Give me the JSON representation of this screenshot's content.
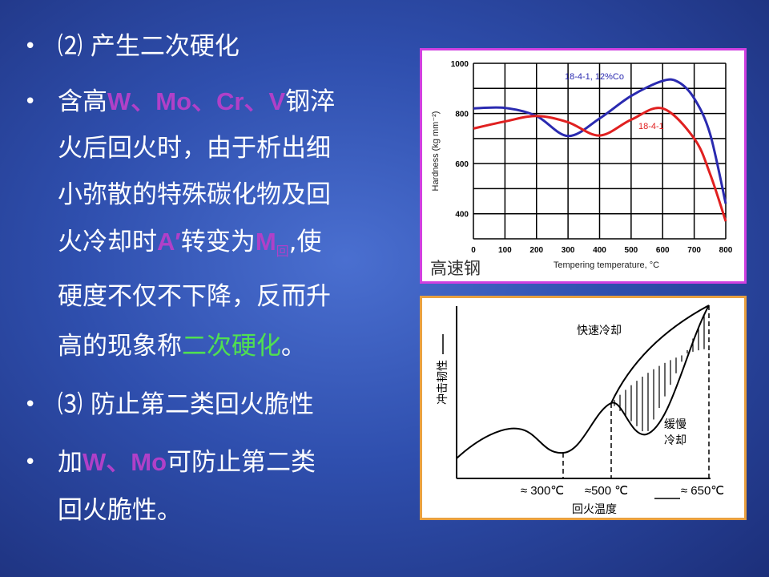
{
  "bullets": [
    {
      "segments": [
        {
          "text": "⑵ 产生二次硬化"
        }
      ]
    },
    {
      "lines": [
        [
          {
            "text": "含高"
          },
          {
            "text": "W、Mo、Cr、V",
            "color": "#b040c8"
          },
          {
            "text": "钢淬"
          }
        ],
        [
          {
            "text": "火后回火时，由于析出细"
          }
        ],
        [
          {
            "text": "小弥散的特殊碳化物及回"
          }
        ],
        [
          {
            "text": "火冷却时"
          },
          {
            "text": "A′",
            "color": "#b040c8"
          },
          {
            "text": "转变为"
          },
          {
            "text": "M",
            "color": "#b040c8"
          },
          {
            "text": "回",
            "sub": true,
            "color": "#b040c8"
          },
          {
            "text": ",使"
          }
        ],
        [
          {
            "text": "硬度不仅不下降，反而升"
          }
        ],
        [
          {
            "text": "高的现象称"
          },
          {
            "text": "二次硬化",
            "color": "#50e050"
          },
          {
            "text": "。"
          }
        ]
      ]
    },
    {
      "segments": [
        {
          "text": "⑶ 防止第二类回火脆性"
        }
      ]
    },
    {
      "lines": [
        [
          {
            "text": "加"
          },
          {
            "text": "W、Mo",
            "color": "#b040c8"
          },
          {
            "text": "可防止第二类"
          }
        ],
        [
          {
            "text": "回火脆性。"
          }
        ]
      ]
    }
  ],
  "bullet_char": "•",
  "chart_data": [
    {
      "type": "line",
      "xlabel": "Tempering temperature, °C",
      "ylabel": "Hardness (kg mm⁻²)",
      "caption": "高速钢",
      "xlim": [
        0,
        800
      ],
      "ylim": [
        300,
        1000
      ],
      "xticks": [
        0,
        100,
        200,
        300,
        400,
        500,
        600,
        700,
        800
      ],
      "yticks": [
        400,
        600,
        800,
        1000
      ],
      "grid": true,
      "series": [
        {
          "name": "18-4-1, 12%Co",
          "color": "#2a2ab0",
          "x": [
            0,
            100,
            200,
            300,
            400,
            500,
            600,
            650,
            700,
            750,
            800
          ],
          "y": [
            820,
            822,
            790,
            710,
            780,
            870,
            930,
            925,
            860,
            720,
            440
          ]
        },
        {
          "name": "18-4-1",
          "color": "#e02020",
          "x": [
            0,
            100,
            200,
            300,
            400,
            500,
            600,
            700,
            750,
            800
          ],
          "y": [
            740,
            768,
            790,
            765,
            712,
            775,
            820,
            700,
            560,
            370
          ]
        }
      ]
    },
    {
      "type": "line",
      "xlabel": "回火温度",
      "ylabel": "冲击韧性",
      "xticks": [
        "≈ 300℃",
        "≈500 ℃",
        "≈ 650℃"
      ],
      "annotations": [
        "快速冷却",
        "缓慢",
        "冷却"
      ]
    }
  ]
}
